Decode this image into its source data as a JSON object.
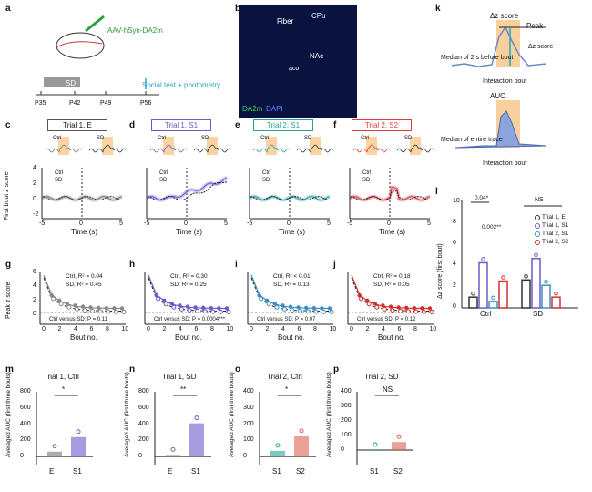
{
  "panel_labels": [
    "a",
    "b",
    "c",
    "d",
    "e",
    "f",
    "g",
    "h",
    "i",
    "j",
    "k",
    "l",
    "m",
    "n",
    "o",
    "p"
  ],
  "panel_a": {
    "virus": "AAV-hSyn-DA2m",
    "timeline_box": "SD",
    "social_test": "Social test + photometry",
    "ages": [
      "P35",
      "P42",
      "P49",
      "P56"
    ]
  },
  "panel_b": {
    "labels": [
      "Fiber",
      "CPu",
      "NAc",
      "aco"
    ],
    "stain_green": "DA2m",
    "stain_blue": "DAPI"
  },
  "trace_panels": [
    {
      "id": "c",
      "title": "Trial 1, E",
      "color": "#777777"
    },
    {
      "id": "d",
      "title": "Trial 1, S1",
      "color": "#6a5acd"
    },
    {
      "id": "e",
      "title": "Trial 2, S1",
      "color": "#2aa198"
    },
    {
      "id": "f",
      "title": "Trial 2, S2",
      "color": "#e03a3a"
    }
  ],
  "trace_common": {
    "inset_ctrl": "Ctrl",
    "inset_sd": "SD",
    "legend": [
      "Ctrl",
      "SD"
    ],
    "ylabel": "First bout z score",
    "xlabel": "Time (s)",
    "xticks": [
      "-5",
      "0",
      "5"
    ],
    "yticks": [
      "4",
      "2",
      "0",
      "-2"
    ]
  },
  "peak_panels": [
    {
      "id": "g",
      "ctrl_r2": "Ctrl, R² = 0.04",
      "sd_r2": "SD, R² = 0.45",
      "stat": "",
      "color": "#888888"
    },
    {
      "id": "h",
      "ctrl_r2": "Ctrl, R² = 0.30",
      "sd_r2": "SD, R² = 0.25",
      "stat": "Ctrl versus SD: P = 0.0004***",
      "color": "#6a5acd"
    },
    {
      "id": "i",
      "ctrl_r2": "Ctrl, R² < 0.01",
      "sd_r2": "SD, R² = 0.13",
      "stat": "Ctrl versus SD: P = 0.07",
      "color": "#3b8fc4"
    },
    {
      "id": "j",
      "ctrl_r2": "Ctrl, R² = 0.18",
      "sd_r2": "SD, R² = 0.05",
      "stat": "Ctrl versus SD: P = 0.12",
      "color": "#d32f2f"
    }
  ],
  "peak_g_stat": "Ctrl versus SD: P = 0.11",
  "peak_common": {
    "ylabel": "Peak z score",
    "xlabel": "Bout no.",
    "xticks": [
      "0",
      "2",
      "4",
      "6",
      "8",
      "10"
    ],
    "yticks": [
      "6",
      "4",
      "2",
      "0"
    ]
  },
  "panel_k": {
    "dz": "Δz score",
    "peak": "Peak",
    "dz2": "Δz score",
    "median2s": "Median of 2 s before bout",
    "interaction": "Interaction bout",
    "auc": "AUC",
    "median_entire": "Median of entire trace",
    "interaction2": "Interaction bout"
  },
  "panel_l": {
    "ylabel": "Δz score (first bout)",
    "groups": [
      "Ctrl",
      "SD"
    ],
    "yticks": [
      "10",
      "8",
      "6",
      "4",
      "2",
      "0"
    ],
    "sig1": "0.04*",
    "sig2": "0.002**",
    "sig3": "NS",
    "legend": [
      "Trial 1, E",
      "Trial 1, S1",
      "Trial 2, S1",
      "Trial 2, S2"
    ],
    "colors": [
      "#333333",
      "#6a5acd",
      "#3b8fc4",
      "#d32f2f"
    ]
  },
  "chart_data": [
    {
      "id": "l",
      "type": "bar",
      "categories": [
        "Ctrl",
        "SD"
      ],
      "series": [
        {
          "name": "Trial 1, E",
          "values": [
            1.0,
            2.6
          ]
        },
        {
          "name": "Trial 1, S1",
          "values": [
            4.2,
            4.6
          ]
        },
        {
          "name": "Trial 2, S1",
          "values": [
            0.6,
            2.1
          ]
        },
        {
          "name": "Trial 2, S2",
          "values": [
            2.5,
            1.0
          ]
        }
      ],
      "ylim": [
        0,
        10
      ]
    },
    {
      "id": "m",
      "type": "bar",
      "title": "Trial 1, Ctrl",
      "categories": [
        "E",
        "S1"
      ],
      "values": [
        60,
        240
      ],
      "ylabel": "Averaged AUC (first three bouts)",
      "ylim": [
        -100,
        800
      ],
      "yticks": [
        "800",
        "600",
        "400",
        "200",
        "0"
      ],
      "sig": "*",
      "colors": [
        "#777777",
        "#6a5acd"
      ]
    },
    {
      "id": "n",
      "type": "bar",
      "title": "Trial 1, SD",
      "categories": [
        "E",
        "S1"
      ],
      "values": [
        20,
        410
      ],
      "ylabel": "Averaged AUC (first three bouts)",
      "ylim": [
        -100,
        800
      ],
      "yticks": [
        "800",
        "600",
        "400",
        "200",
        "0"
      ],
      "sig": "**",
      "colors": [
        "#777777",
        "#6a5acd"
      ]
    },
    {
      "id": "o",
      "type": "bar",
      "title": "Trial 2, Ctrl",
      "categories": [
        "S1",
        "S2"
      ],
      "values": [
        35,
        125
      ],
      "ylabel": "Averaged AUC (first three bouts)",
      "ylim": [
        -50,
        400
      ],
      "yticks": [
        "400",
        "300",
        "200",
        "100",
        "0"
      ],
      "sig": "*",
      "colors": [
        "#2aa198",
        "#e06050"
      ]
    },
    {
      "id": "p",
      "type": "bar",
      "title": "Trial 2, SD",
      "categories": [
        "S1",
        "S2"
      ],
      "values": [
        -5,
        55
      ],
      "ylabel": "Averaged AUC (first three bouts)",
      "ylim": [
        -100,
        400
      ],
      "yticks": [
        "400",
        "300",
        "200",
        "100",
        "0"
      ],
      "sig": "NS",
      "colors": [
        "#3b8fc4",
        "#e06050"
      ]
    }
  ]
}
